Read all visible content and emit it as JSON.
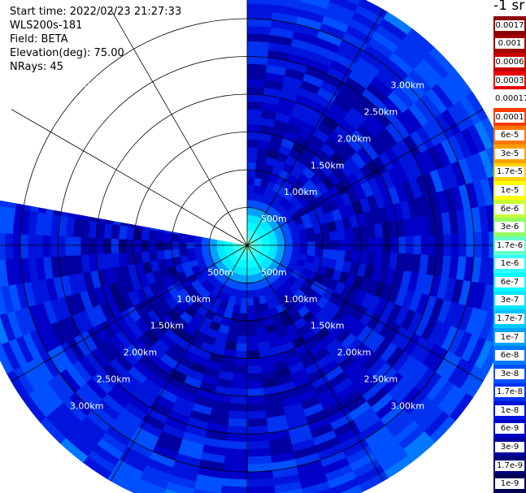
{
  "info": {
    "start_time": "Start time: 2022/02/23 21:27:33",
    "site": "WLS200s-181",
    "field": "Field: BETA",
    "elevation": "Elevation(deg): 75.00",
    "nrays": "NRays: 45"
  },
  "colorbar": {
    "units_label": "-1 sr",
    "labels": [
      "0.0017",
      "0.001",
      "0.0006",
      "0.0003",
      "0.00017",
      "0.0001",
      "6e-5",
      "3e-5",
      "1.7e-5",
      "1e-5",
      "6e-6",
      "3e-6",
      "1.7e-6",
      "1e-6",
      "6e-7",
      "3e-7",
      "1.7e-7",
      "1e-7",
      "6e-8",
      "3e-8",
      "1.7e-8",
      "1e-8",
      "6e-9",
      "3e-9",
      "1.7e-9",
      "1e-9"
    ],
    "colors": [
      "#8b0000",
      "#a00000",
      "#c80000",
      "#e60000",
      "#ffffff",
      "#ff3c00",
      "#ff7800",
      "#ffa000",
      "#ffd200",
      "#ffff00",
      "#c8ff32",
      "#96ff64",
      "#64ffc8",
      "#32ffff",
      "#00ffff",
      "#00e6ff",
      "#00c8ff",
      "#00a0ff",
      "#0078ff",
      "#0050ff",
      "#0032f0",
      "#0014dc",
      "#0000c8",
      "#0000a0",
      "#000078",
      "#000050"
    ]
  },
  "chart_data": {
    "type": "heatmap",
    "title": "",
    "plot_kind": "PPI (polar plan position indicator)",
    "field": "BETA",
    "units": "-1 sr",
    "color_scale": "log",
    "range_unit": "km",
    "range_rings_km": [
      0.5,
      1.0,
      1.5,
      2.0,
      2.5,
      3.0
    ],
    "range_ring_labels": [
      "500m",
      "1.00km",
      "1.50km",
      "2.00km",
      "2.50km",
      "3.00km"
    ],
    "max_range_km": 3.6,
    "azimuth_spokes_deg": [
      0,
      30,
      60,
      90,
      120,
      150,
      180,
      210,
      240,
      270,
      300,
      330
    ],
    "data_sector_deg": [
      0,
      280
    ],
    "missing_sector_deg": [
      280,
      360
    ],
    "gate_spacing_km": 0.1,
    "ray_width_deg": 6.2,
    "radial_profile": [
      {
        "range_km": 0.1,
        "value": 1.7e-06
      },
      {
        "range_km": 0.2,
        "value": 1e-06
      },
      {
        "range_km": 0.3,
        "value": 6e-07
      },
      {
        "range_km": 0.4,
        "value": 1.7e-07
      },
      {
        "range_km": 0.5,
        "value": 6e-08
      },
      {
        "range_km": 0.7,
        "value": 1e-08
      },
      {
        "range_km": 1.5,
        "value": 6e-09
      },
      {
        "range_km": 2.5,
        "value": 1e-08
      },
      {
        "range_km": 3.0,
        "value": 1.7e-08
      },
      {
        "range_km": 3.5,
        "value": 3e-08
      }
    ],
    "grid": true,
    "legend": "right"
  }
}
